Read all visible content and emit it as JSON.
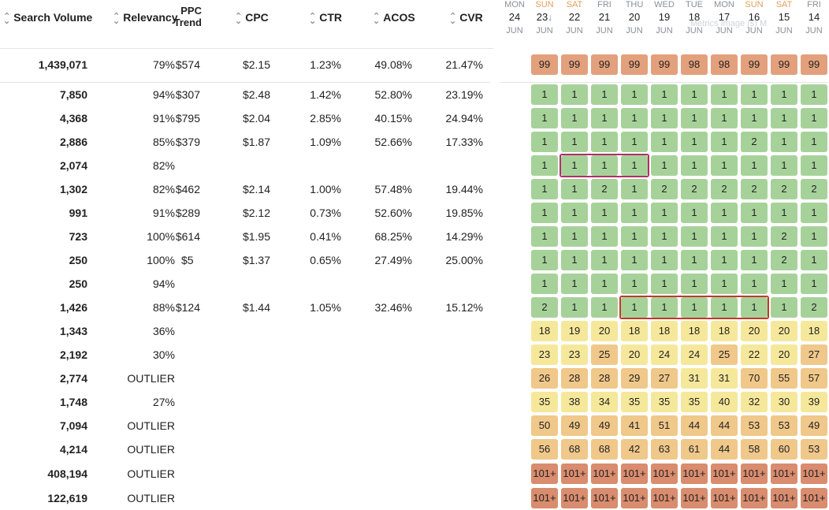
{
  "columns": {
    "search_volume": "Search Volume",
    "relevancy": "Relevancy",
    "ppc_trend_top": "PPC",
    "ppc_trend_bottom": "Trend",
    "cpc": "CPC",
    "ctr": "CTR",
    "acos": "ACOS",
    "cvr": "CVR"
  },
  "summary": {
    "volume": "1,439,071",
    "relevancy": "79%",
    "trend": "$574",
    "cpc": "$2.15",
    "ctr": "1.23%",
    "acos": "49.08%",
    "cvr": "21.47%"
  },
  "rows": [
    {
      "volume": "7,850",
      "relevancy": "94%",
      "trend": "$307",
      "cpc": "$2.48",
      "ctr": "1.42%",
      "acos": "52.80%",
      "cvr": "23.19%"
    },
    {
      "volume": "4,368",
      "relevancy": "91%",
      "trend": "$795",
      "cpc": "$2.04",
      "ctr": "2.85%",
      "acos": "40.15%",
      "cvr": "24.94%"
    },
    {
      "volume": "2,886",
      "relevancy": "85%",
      "trend": "$379",
      "cpc": "$1.87",
      "ctr": "1.09%",
      "acos": "52.66%",
      "cvr": "17.33%"
    },
    {
      "volume": "2,074",
      "relevancy": "82%",
      "trend": "",
      "cpc": "",
      "ctr": "",
      "acos": "",
      "cvr": ""
    },
    {
      "volume": "1,302",
      "relevancy": "82%",
      "trend": "$462",
      "cpc": "$2.14",
      "ctr": "1.00%",
      "acos": "57.48%",
      "cvr": "19.44%"
    },
    {
      "volume": "991",
      "relevancy": "91%",
      "trend": "$289",
      "cpc": "$2.12",
      "ctr": "0.73%",
      "acos": "52.60%",
      "cvr": "19.85%"
    },
    {
      "volume": "723",
      "relevancy": "100%",
      "trend": "$614",
      "cpc": "$1.95",
      "ctr": "0.41%",
      "acos": "68.25%",
      "cvr": "14.29%"
    },
    {
      "volume": "250",
      "relevancy": "100%",
      "trend": "$5",
      "cpc": "$1.37",
      "ctr": "0.65%",
      "acos": "27.49%",
      "cvr": "25.00%"
    },
    {
      "volume": "250",
      "relevancy": "94%",
      "trend": "",
      "cpc": "",
      "ctr": "",
      "acos": "",
      "cvr": ""
    },
    {
      "volume": "1,426",
      "relevancy": "88%",
      "trend": "$124",
      "cpc": "$1.44",
      "ctr": "1.05%",
      "acos": "32.46%",
      "cvr": "15.12%"
    },
    {
      "volume": "1,343",
      "relevancy": "36%",
      "trend": "",
      "cpc": "",
      "ctr": "",
      "acos": "",
      "cvr": ""
    },
    {
      "volume": "2,192",
      "relevancy": "30%",
      "trend": "",
      "cpc": "",
      "ctr": "",
      "acos": "",
      "cvr": ""
    },
    {
      "volume": "2,774",
      "relevancy": "OUTLIER",
      "trend": "",
      "cpc": "",
      "ctr": "",
      "acos": "",
      "cvr": ""
    },
    {
      "volume": "1,748",
      "relevancy": "27%",
      "trend": "",
      "cpc": "",
      "ctr": "",
      "acos": "",
      "cvr": ""
    },
    {
      "volume": "7,094",
      "relevancy": "OUTLIER",
      "trend": "",
      "cpc": "",
      "ctr": "",
      "acos": "",
      "cvr": ""
    },
    {
      "volume": "4,214",
      "relevancy": "OUTLIER",
      "trend": "",
      "cpc": "",
      "ctr": "",
      "acos": "",
      "cvr": ""
    },
    {
      "volume": "408,194",
      "relevancy": "OUTLIER",
      "trend": "",
      "cpc": "",
      "ctr": "",
      "acos": "",
      "cvr": ""
    },
    {
      "volume": "122,619",
      "relevancy": "OUTLIER",
      "trend": "",
      "cpc": "",
      "ctr": "",
      "acos": "",
      "cvr": ""
    }
  ],
  "dates": [
    {
      "dow": "MON",
      "day": "24",
      "mon": "JUN",
      "weekend": false,
      "sorted": false
    },
    {
      "dow": "SUN",
      "day": "23",
      "mon": "JUN",
      "weekend": true,
      "sorted": true
    },
    {
      "dow": "SAT",
      "day": "22",
      "mon": "JUN",
      "weekend": true,
      "sorted": false
    },
    {
      "dow": "FRI",
      "day": "21",
      "mon": "JUN",
      "weekend": false,
      "sorted": false
    },
    {
      "dow": "THU",
      "day": "20",
      "mon": "JUN",
      "weekend": false,
      "sorted": false
    },
    {
      "dow": "WED",
      "day": "19",
      "mon": "JUN",
      "weekend": false,
      "sorted": false
    },
    {
      "dow": "TUE",
      "day": "18",
      "mon": "JUN",
      "weekend": false,
      "sorted": false
    },
    {
      "dow": "MON",
      "day": "17",
      "mon": "JUN",
      "weekend": false,
      "sorted": false
    },
    {
      "dow": "SUN",
      "day": "16",
      "mon": "JUN",
      "weekend": true,
      "sorted": false
    },
    {
      "dow": "SAT",
      "day": "15",
      "mon": "JUN",
      "weekend": true,
      "sorted": false
    },
    {
      "dow": "FRI",
      "day": "14",
      "mon": "JUN",
      "weekend": false,
      "sorted": false
    }
  ],
  "sort_arrow": "↓",
  "summary_ranks": [
    "99",
    "99",
    "99",
    "99",
    "99",
    "98",
    "98",
    "99",
    "99",
    "99"
  ],
  "ranks": [
    [
      "1",
      "1",
      "1",
      "1",
      "1",
      "1",
      "1",
      "1",
      "1",
      "1"
    ],
    [
      "1",
      "1",
      "1",
      "1",
      "1",
      "1",
      "1",
      "1",
      "1",
      "1"
    ],
    [
      "1",
      "1",
      "1",
      "1",
      "1",
      "1",
      "1",
      "2",
      "1",
      "1"
    ],
    [
      "1",
      "1",
      "1",
      "1",
      "1",
      "1",
      "1",
      "1",
      "1",
      "1"
    ],
    [
      "1",
      "1",
      "2",
      "1",
      "2",
      "2",
      "2",
      "2",
      "2",
      "2"
    ],
    [
      "1",
      "1",
      "1",
      "1",
      "1",
      "1",
      "1",
      "1",
      "1",
      "1"
    ],
    [
      "1",
      "1",
      "1",
      "1",
      "1",
      "1",
      "1",
      "1",
      "2",
      "1"
    ],
    [
      "1",
      "1",
      "1",
      "1",
      "1",
      "1",
      "1",
      "1",
      "2",
      "1"
    ],
    [
      "1",
      "1",
      "1",
      "1",
      "1",
      "1",
      "1",
      "1",
      "1",
      "1"
    ],
    [
      "2",
      "1",
      "1",
      "1",
      "1",
      "1",
      "1",
      "1",
      "1",
      "2"
    ],
    [
      "18",
      "19",
      "20",
      "18",
      "18",
      "18",
      "18",
      "20",
      "20",
      "18"
    ],
    [
      "23",
      "23",
      "25",
      "20",
      "24",
      "24",
      "25",
      "22",
      "20",
      "27"
    ],
    [
      "26",
      "28",
      "28",
      "29",
      "27",
      "31",
      "31",
      "70",
      "55",
      "57"
    ],
    [
      "35",
      "38",
      "34",
      "35",
      "35",
      "35",
      "40",
      "32",
      "30",
      "39"
    ],
    [
      "50",
      "49",
      "49",
      "41",
      "51",
      "44",
      "44",
      "53",
      "53",
      "49"
    ],
    [
      "56",
      "68",
      "68",
      "42",
      "63",
      "61",
      "44",
      "58",
      "60",
      "53"
    ],
    [
      "101+",
      "101+",
      "101+",
      "101+",
      "101+",
      "101+",
      "101+",
      "101+",
      "101+",
      "101+"
    ],
    [
      "101+",
      "101+",
      "101+",
      "101+",
      "101+",
      "101+",
      "101+",
      "101+",
      "101+",
      "101+"
    ]
  ],
  "highlights": [
    {
      "row": 3,
      "from": 1,
      "to": 3,
      "color": "#b0306a"
    },
    {
      "row": 9,
      "from": 3,
      "to": 7,
      "color": "#c0392b"
    }
  ],
  "ghost_text": "Metrics Image (s) M",
  "colors": {
    "green": "#a6d29a",
    "yellow": "#f6e89a",
    "orange": "#f0c88a",
    "salmon": "#e3a07c",
    "red": "#d98c6e"
  }
}
